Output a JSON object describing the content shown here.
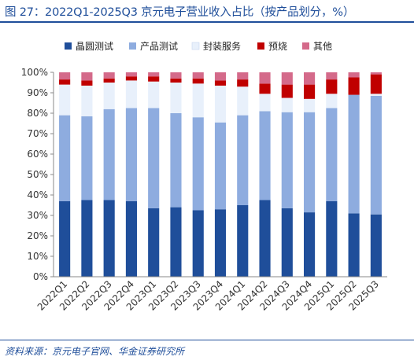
{
  "title": "图 27：2022Q1-2025Q3 京元电子营业收入占比（按产品划分，%）",
  "source": "资料来源：京元电子官网、华金证券研究所",
  "chart_data": {
    "type": "bar",
    "stacked": true,
    "categories": [
      "2022Q1",
      "2022Q2",
      "2022Q3",
      "2022Q4",
      "2023Q1",
      "2023Q2",
      "2023Q3",
      "2023Q4",
      "2024Q1",
      "2024Q2",
      "2024Q3",
      "2024Q4",
      "2025Q1",
      "2025Q2",
      "2025Q3"
    ],
    "ylim": [
      0,
      100
    ],
    "yticks": [
      "0%",
      "10%",
      "20%",
      "30%",
      "40%",
      "50%",
      "60%",
      "70%",
      "80%",
      "90%",
      "100%"
    ],
    "legend_position": "top",
    "series": [
      {
        "name": "晶圆测试",
        "color": "#1f4e9a",
        "values": [
          37,
          37.5,
          37.5,
          37,
          33.5,
          34,
          32.5,
          33,
          35,
          37.5,
          33.5,
          31.5,
          37,
          31,
          30.5
        ]
      },
      {
        "name": "产品测试",
        "color": "#8eacdf",
        "values": [
          42,
          41,
          44.5,
          45.5,
          49,
          46,
          45.5,
          42.5,
          44,
          43.5,
          47,
          49,
          45.5,
          58,
          58
        ]
      },
      {
        "name": "封装服务",
        "color": "#e8f0fb",
        "values": [
          15,
          15,
          13,
          13.5,
          13,
          15,
          16.5,
          18,
          14,
          8.5,
          7,
          6.5,
          7,
          0,
          1
        ]
      },
      {
        "name": "预烧",
        "color": "#c00000",
        "values": [
          2.5,
          2.5,
          2,
          2,
          2.5,
          2,
          2.5,
          2.5,
          3.5,
          5,
          6.5,
          7,
          7,
          8.5,
          9.5
        ]
      },
      {
        "name": "其他",
        "color": "#d46a8a",
        "values": [
          3.5,
          4,
          3,
          2,
          2,
          3,
          3,
          4,
          3.5,
          5.5,
          6,
          6,
          3.5,
          2.5,
          1
        ]
      }
    ]
  }
}
